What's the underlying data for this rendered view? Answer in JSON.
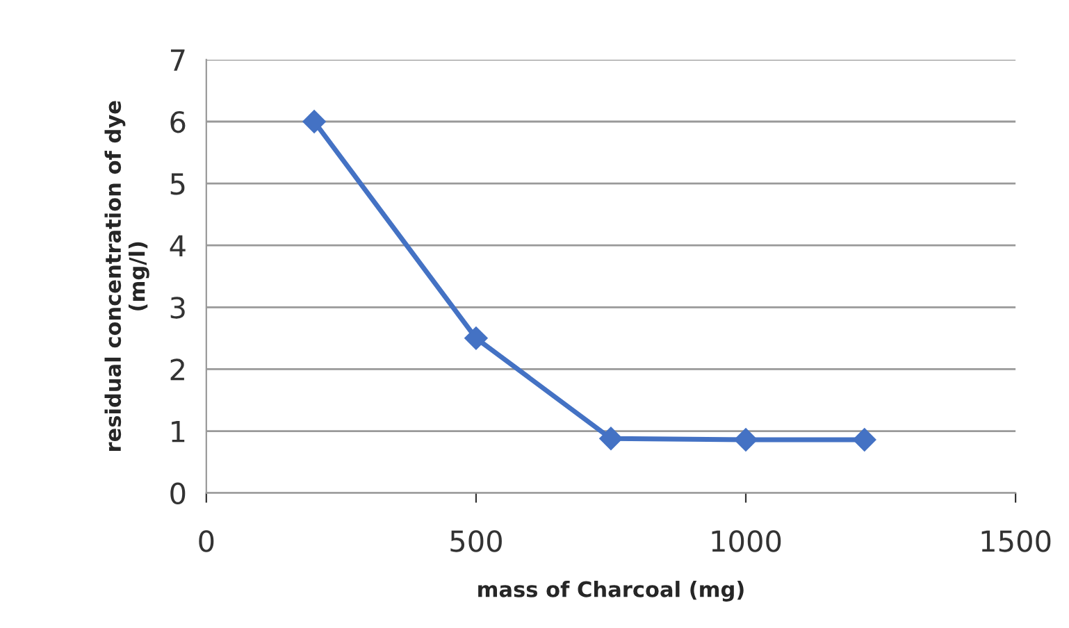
{
  "chart_data": {
    "type": "line",
    "xlabel": "mass of Charcoal (mg)",
    "ylabel": "residual concentration of dye\n(mg/l)",
    "x": [
      200,
      500,
      750,
      1000,
      1220
    ],
    "series": [
      {
        "color": "#4472c4",
        "values": [
          6,
          2.5,
          0.88,
          0.86,
          0.86
        ]
      }
    ],
    "xlim": [
      0,
      1500
    ],
    "xticks": [
      0,
      500,
      1000,
      1500
    ],
    "ylim": [
      0,
      7
    ],
    "yticks": [
      0,
      1,
      2,
      3,
      4,
      5,
      6,
      7
    ],
    "grid": "y",
    "marker": "diamond",
    "line_style": "solid"
  }
}
